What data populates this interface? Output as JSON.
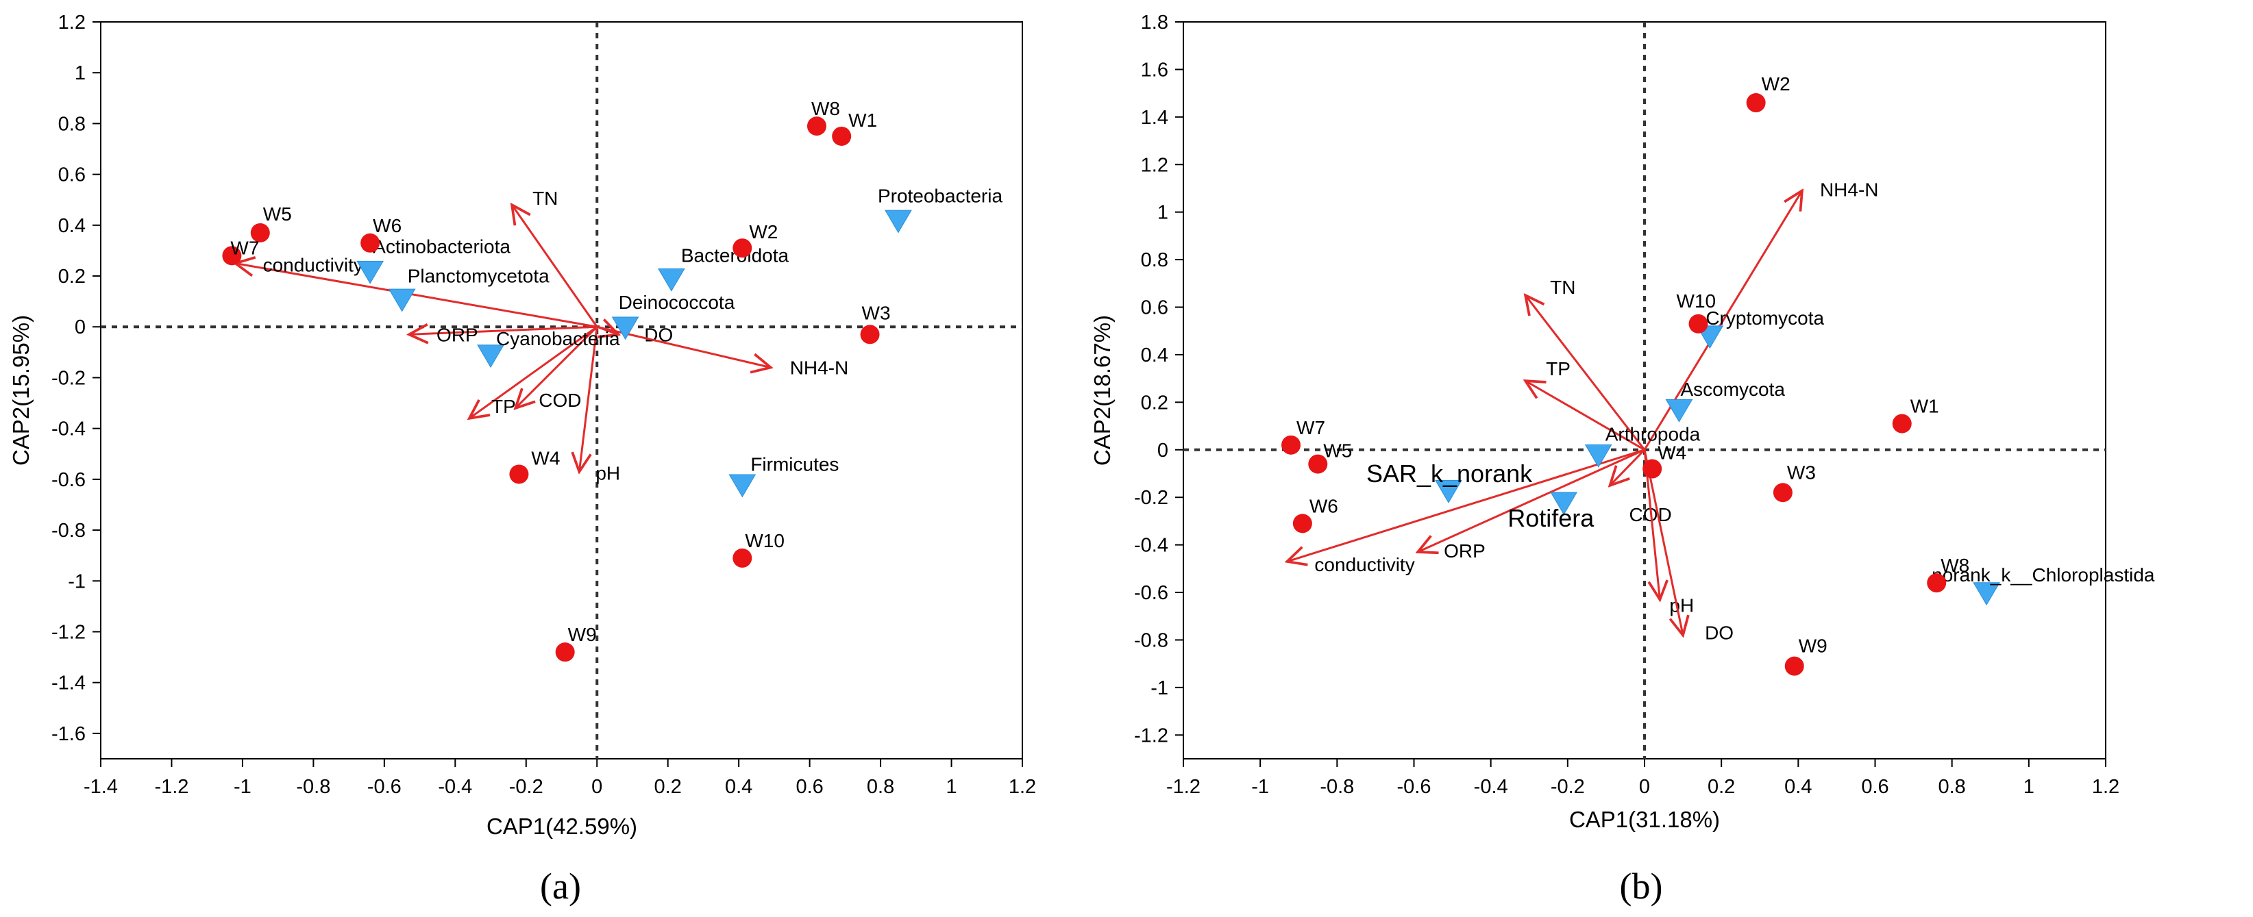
{
  "chart_data": [
    {
      "type": "scatter",
      "panel_label": "(a)",
      "xlabel": "CAP1(42.59%)",
      "ylabel": "CAP2(15.95%)",
      "xlim": [
        -1.4,
        1.2
      ],
      "ylim": [
        -1.7,
        1.2
      ],
      "xticks": [
        -1.4,
        -1.2,
        -1,
        -0.8,
        -0.6,
        -0.4,
        -0.2,
        0,
        0.2,
        0.4,
        0.6,
        0.8,
        1,
        1.2
      ],
      "yticks": [
        -1.6,
        -1.4,
        -1.2,
        -1,
        -0.8,
        -0.6,
        -0.4,
        -0.2,
        0,
        0.2,
        0.4,
        0.6,
        0.8,
        1,
        1.2
      ],
      "xtick_labels": [
        "-1.4",
        "-1.2",
        "-1",
        "-0.8",
        "-0.6",
        "-0.4",
        "-0.2",
        "0",
        "0.2",
        "0.4",
        "0.6",
        "0.8",
        "1",
        "1.2"
      ],
      "ytick_labels": [
        "-1.6",
        "-1.4",
        "-1.2",
        "-1",
        "-0.8",
        "-0.6",
        "-0.4",
        "-0.2",
        "0",
        "0.2",
        "0.4",
        "0.6",
        "0.8",
        "1",
        "1.2"
      ],
      "samples": [
        {
          "name": "W1",
          "x": 0.69,
          "y": 0.75
        },
        {
          "name": "W2",
          "x": 0.41,
          "y": 0.31
        },
        {
          "name": "W3",
          "x": 0.77,
          "y": -0.03
        },
        {
          "name": "W4",
          "x": -0.22,
          "y": -0.58
        },
        {
          "name": "W5",
          "x": -0.95,
          "y": 0.37
        },
        {
          "name": "W6",
          "x": -0.64,
          "y": 0.33
        },
        {
          "name": "W7",
          "x": -1.03,
          "y": 0.28
        },
        {
          "name": "W8",
          "x": 0.62,
          "y": 0.79
        },
        {
          "name": "W9",
          "x": -0.09,
          "y": -1.28
        },
        {
          "name": "W10",
          "x": 0.41,
          "y": -0.91
        }
      ],
      "species": [
        {
          "name": "Proteobacteria",
          "x": 0.85,
          "y": 0.42
        },
        {
          "name": "Bacteroidota",
          "x": 0.21,
          "y": 0.19
        },
        {
          "name": "Actinobacteriota",
          "x": -0.64,
          "y": 0.22
        },
        {
          "name": "Planctomycetota",
          "x": -0.55,
          "y": 0.11
        },
        {
          "name": "Deinococcota",
          "x": 0.08,
          "y": 0.0
        },
        {
          "name": "Cyanobacteria",
          "x": -0.3,
          "y": -0.11
        },
        {
          "name": "Firmicutes",
          "x": 0.41,
          "y": -0.62
        }
      ],
      "env_vectors": [
        {
          "name": "TN",
          "x": -0.24,
          "y": 0.48
        },
        {
          "name": "conductivity",
          "x": -1.02,
          "y": 0.25
        },
        {
          "name": "ORP",
          "x": -0.53,
          "y": -0.03
        },
        {
          "name": "DO",
          "x": 0.06,
          "y": -0.03
        },
        {
          "name": "NH4-N",
          "x": 0.49,
          "y": -0.16
        },
        {
          "name": "COD",
          "x": -0.23,
          "y": -0.32
        },
        {
          "name": "TP",
          "x": -0.36,
          "y": -0.36
        },
        {
          "name": "pH",
          "x": -0.05,
          "y": -0.57
        }
      ],
      "colors": {
        "sample": "#e81416",
        "species": "#40a8f0",
        "vector": "#e32b2b"
      }
    },
    {
      "type": "scatter",
      "panel_label": "(b)",
      "xlabel": "CAP1(31.18%)",
      "ylabel": "CAP2(18.67%)",
      "xlim": [
        -1.2,
        1.2
      ],
      "ylim": [
        -1.3,
        1.8
      ],
      "xticks": [
        -1.2,
        -1,
        -0.8,
        -0.6,
        -0.4,
        -0.2,
        0,
        0.2,
        0.4,
        0.6,
        0.8,
        1,
        1.2
      ],
      "yticks": [
        -1.2,
        -1,
        -0.8,
        -0.6,
        -0.4,
        -0.2,
        0,
        0.2,
        0.4,
        0.6,
        0.8,
        1,
        1.2,
        1.4,
        1.6,
        1.8
      ],
      "xtick_labels": [
        "-1.2",
        "-1",
        "-0.8",
        "-0.6",
        "-0.4",
        "-0.2",
        "0",
        "0.2",
        "0.4",
        "0.6",
        "0.8",
        "1",
        "1.2"
      ],
      "ytick_labels": [
        "-1.2",
        "-1",
        "-0.8",
        "-0.6",
        "-0.4",
        "-0.2",
        "0",
        "0.2",
        "0.4",
        "0.6",
        "0.8",
        "1",
        "1.2",
        "1.4",
        "1.6",
        "1.8"
      ],
      "samples": [
        {
          "name": "W1",
          "x": 0.67,
          "y": 0.11
        },
        {
          "name": "W2",
          "x": 0.29,
          "y": 1.46
        },
        {
          "name": "W3",
          "x": 0.36,
          "y": -0.18
        },
        {
          "name": "W4",
          "x": 0.02,
          "y": -0.08
        },
        {
          "name": "W5",
          "x": -0.85,
          "y": -0.06
        },
        {
          "name": "W6",
          "x": -0.89,
          "y": -0.31
        },
        {
          "name": "W7",
          "x": -0.92,
          "y": 0.02
        },
        {
          "name": "W8",
          "x": 0.76,
          "y": -0.56
        },
        {
          "name": "W9",
          "x": 0.39,
          "y": -0.91
        },
        {
          "name": "W10",
          "x": 0.14,
          "y": 0.53
        }
      ],
      "species": [
        {
          "name": "Cryptomycota",
          "x": 0.17,
          "y": 0.48
        },
        {
          "name": "Ascomycota",
          "x": 0.09,
          "y": 0.17
        },
        {
          "name": "Arthropoda",
          "x": -0.12,
          "y": -0.02
        },
        {
          "name": "SAR_k_norank",
          "x": -0.51,
          "y": -0.17
        },
        {
          "name": "Rotifera",
          "x": -0.21,
          "y": -0.22
        },
        {
          "name": "norank_k__Chloroplastida",
          "x": 0.89,
          "y": -0.6
        }
      ],
      "env_vectors": [
        {
          "name": "NH4-N",
          "x": 0.41,
          "y": 1.09
        },
        {
          "name": "TN",
          "x": -0.31,
          "y": 0.65
        },
        {
          "name": "TP",
          "x": -0.31,
          "y": 0.29
        },
        {
          "name": "COD",
          "x": -0.09,
          "y": -0.15
        },
        {
          "name": "conductivity",
          "x": -0.93,
          "y": -0.47
        },
        {
          "name": "ORP",
          "x": -0.59,
          "y": -0.43
        },
        {
          "name": "pH",
          "x": 0.04,
          "y": -0.63
        },
        {
          "name": "DO",
          "x": 0.1,
          "y": -0.78
        }
      ],
      "colors": {
        "sample": "#e81416",
        "species": "#40a8f0",
        "vector": "#e32b2b"
      }
    }
  ]
}
